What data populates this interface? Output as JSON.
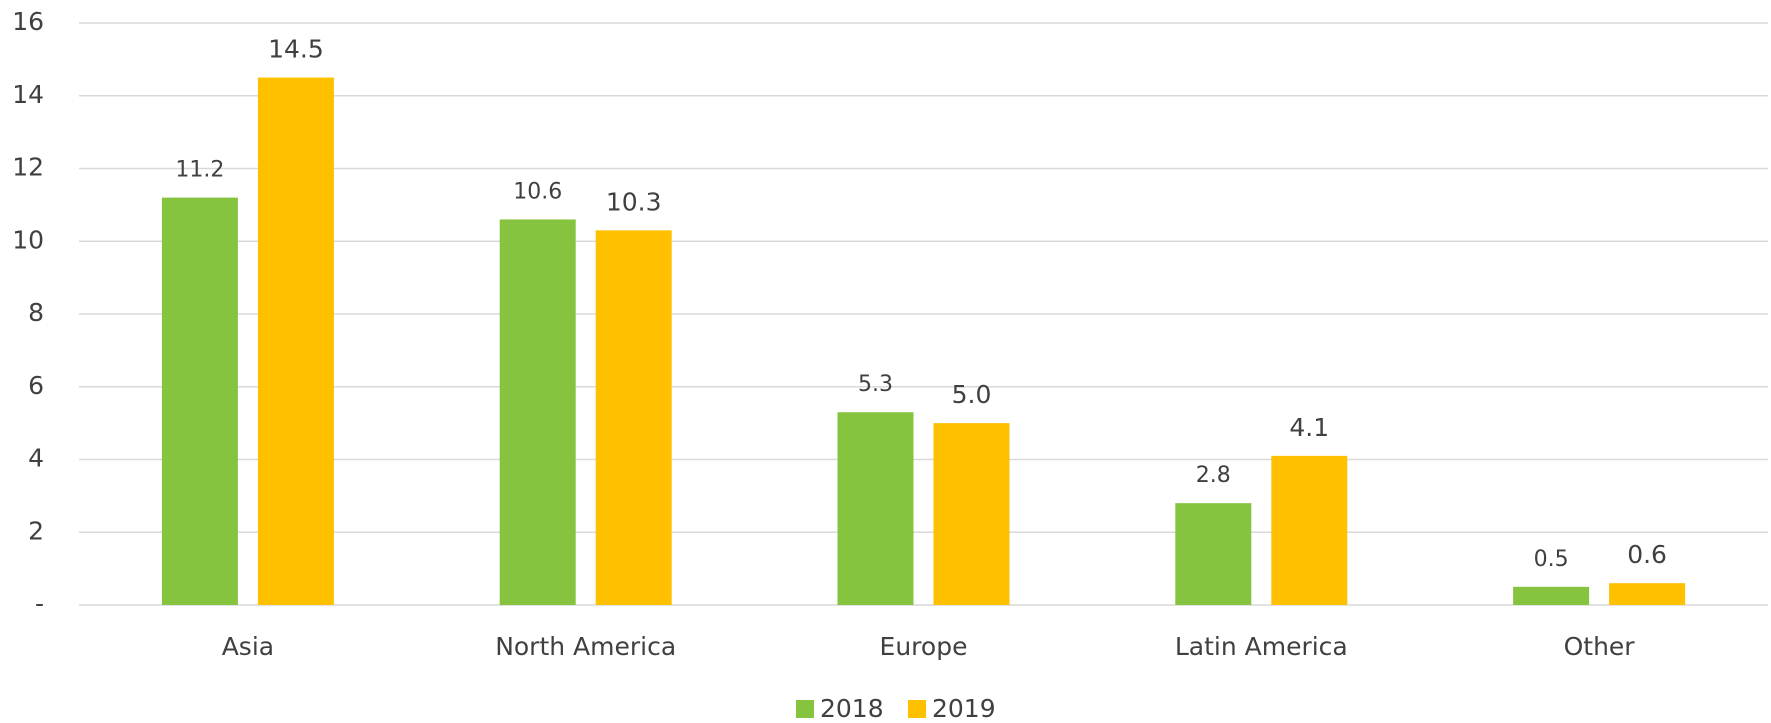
{
  "chart_data": {
    "type": "bar",
    "categories": [
      "Asia",
      "North America",
      "Europe",
      "Latin America",
      "Other"
    ],
    "series": [
      {
        "name": "2018",
        "color": "#86c440",
        "values": [
          11.2,
          10.6,
          5.3,
          2.8,
          0.5
        ],
        "value_labels": [
          "11.2",
          "10.6",
          "5.3",
          "2.8",
          "0.5"
        ]
      },
      {
        "name": "2019",
        "color": "#ffc000",
        "values": [
          14.5,
          10.3,
          5.0,
          4.1,
          0.6
        ],
        "value_labels": [
          "14.5",
          "10.3",
          "5.0",
          "4.1",
          "0.6"
        ]
      }
    ],
    "ylim": [
      0,
      16
    ],
    "yticks": [
      {
        "value": 0,
        "label": "-"
      },
      2,
      4,
      6,
      8,
      10,
      12,
      14,
      16
    ],
    "grid": true,
    "legend": "bottom"
  }
}
